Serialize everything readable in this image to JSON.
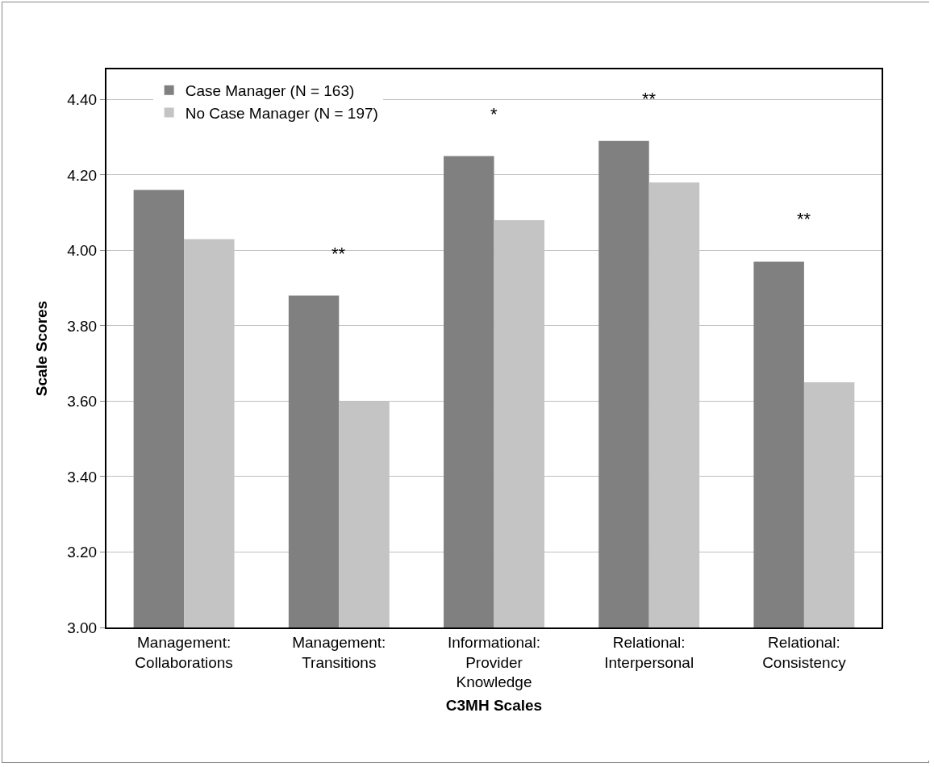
{
  "chart_data": {
    "type": "bar",
    "xlabel": "C3MH Scales",
    "ylabel": "Scale Scores",
    "categories": [
      "Management:\nCollaborations",
      "Management:\nTransitions",
      "Informational:\nProvider\nKnowledge",
      "Relational:\nInterpersonal",
      "Relational:\nConsistency"
    ],
    "series": [
      {
        "name": "Case Manager (N = 163)",
        "color": "#808080",
        "values": [
          4.16,
          3.88,
          4.25,
          4.29,
          3.97
        ]
      },
      {
        "name": "No Case Manager (N = 197)",
        "color": "#c4c4c4",
        "values": [
          4.03,
          3.6,
          4.08,
          4.18,
          3.65
        ]
      }
    ],
    "ylim": [
      3,
      4.48
    ],
    "yticks": [
      {
        "value": 3,
        "label": "3.00"
      },
      {
        "value": 3.2,
        "label": "3.20"
      },
      {
        "value": 3.4,
        "label": "3.40"
      },
      {
        "value": 3.6,
        "label": "3.60"
      },
      {
        "value": 3.8,
        "label": "3.80"
      },
      {
        "value": 4,
        "label": "4.00"
      },
      {
        "value": 4.2,
        "label": "4.20"
      },
      {
        "value": 4.4,
        "label": "4.40"
      }
    ],
    "grid": "y",
    "legend": "top left",
    "annotations": [
      {
        "text": "**",
        "x": "Management:\nTransitions",
        "y": 3.88
      },
      {
        "text": "*",
        "x": "Informational:\nProvider\nKnowledge",
        "y": 4.25
      },
      {
        "text": "**",
        "x": "Relational:\nInterpersonal",
        "y": 4.29
      },
      {
        "text": "**",
        "x": "Relational:\nConsistency",
        "y": 3.97
      }
    ]
  }
}
